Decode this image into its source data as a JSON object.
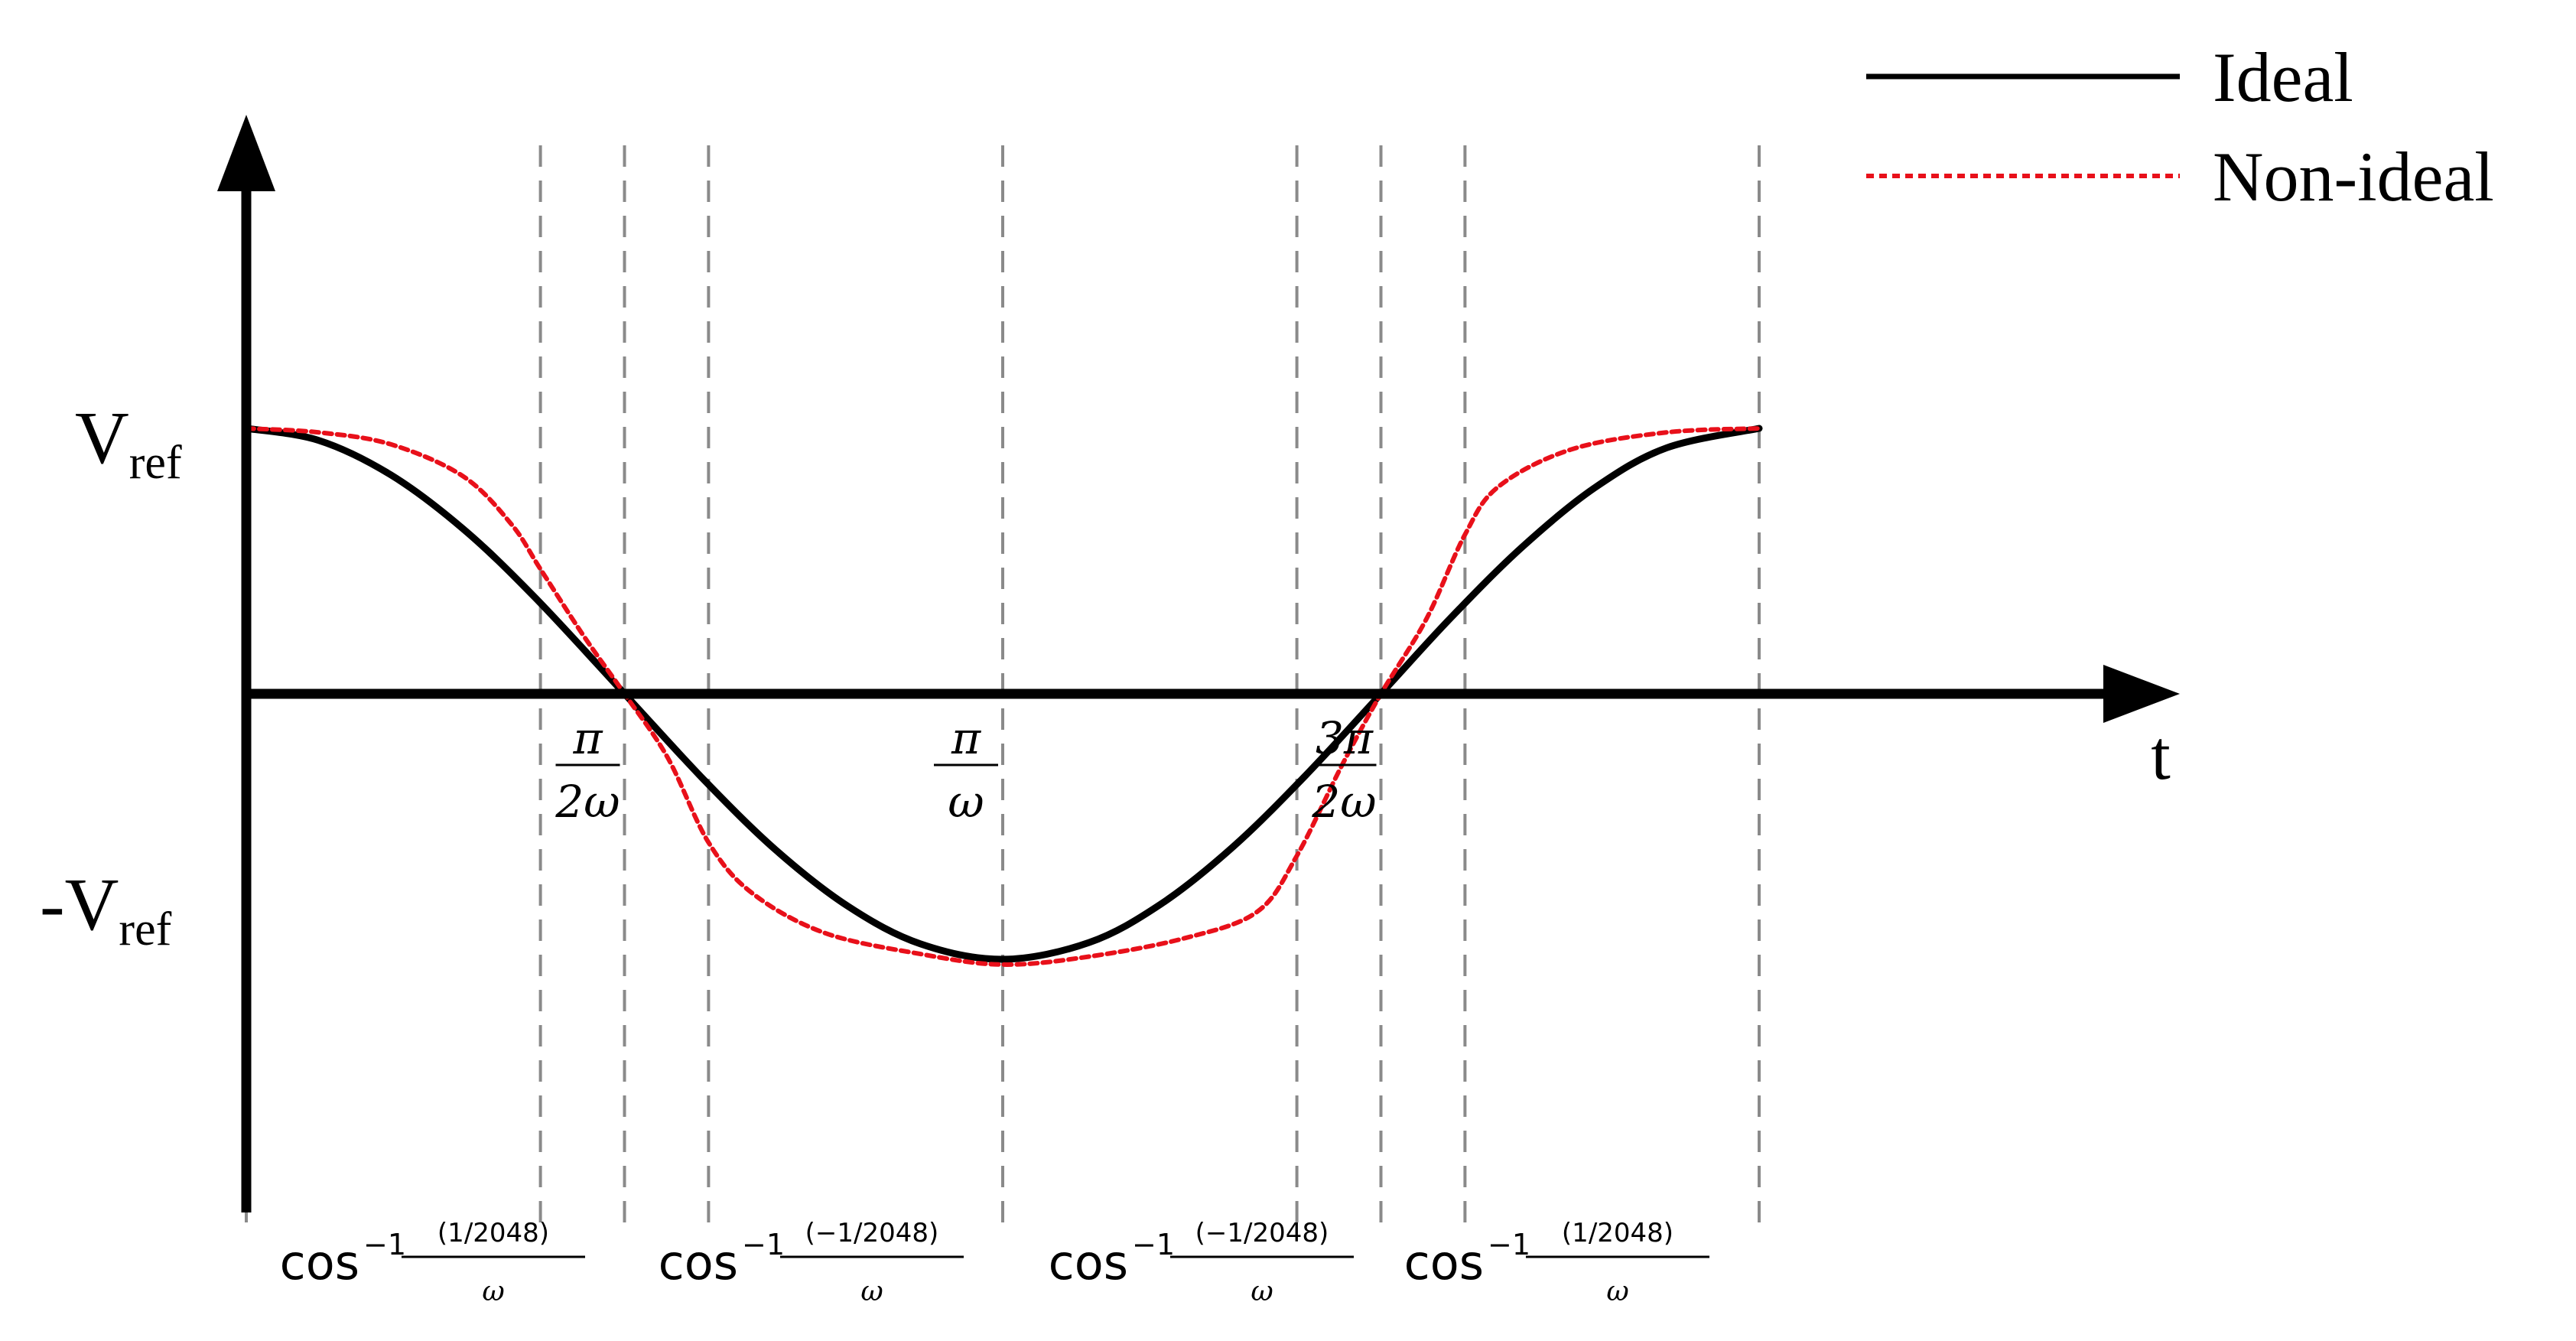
{
  "chart_data": {
    "type": "line",
    "title": "",
    "xlabel": "t",
    "ylabel": "",
    "grid": false,
    "legend_position": "top-right",
    "x_axis": {
      "name": "t",
      "range": [
        0,
        6.2832
      ],
      "ticks": [
        {
          "value": 1.5708,
          "numerator": "π",
          "denominator": "2ω"
        },
        {
          "value": 3.1416,
          "numerator": "π",
          "denominator": "ω"
        },
        {
          "value": 4.7124,
          "numerator": "3π",
          "denominator": "2ω"
        }
      ]
    },
    "y_axis": {
      "ticks": [
        {
          "value": 1,
          "base": "V",
          "prefix": "",
          "sub": "ref"
        },
        {
          "value": -1,
          "base": "V",
          "prefix": "-",
          "sub": "ref"
        }
      ]
    },
    "dashed_guides": [
      {
        "x": 0.0,
        "label": ""
      },
      {
        "x": 1.2217,
        "label_index": 0
      },
      {
        "x": 1.5708,
        "label": ""
      },
      {
        "x": 1.9199,
        "label_index": 1
      },
      {
        "x": 3.1416,
        "label": ""
      },
      {
        "x": 4.3633,
        "label_index": 2
      },
      {
        "x": 4.7124,
        "label": ""
      },
      {
        "x": 5.0615,
        "label_index": 3
      },
      {
        "x": 6.2832,
        "label": ""
      }
    ],
    "guide_labels": [
      {
        "func": "cos",
        "exp": "−1",
        "numerator": "(1/2048)",
        "denominator": "ω"
      },
      {
        "func": "cos",
        "exp": "−1",
        "numerator": "(−1/2048)",
        "denominator": "ω"
      },
      {
        "func": "cos",
        "exp": "−1",
        "numerator": "(−1/2048)",
        "denominator": "ω"
      },
      {
        "func": "cos",
        "exp": "−1",
        "numerator": "(1/2048)",
        "denominator": "ω"
      }
    ],
    "series": [
      {
        "name": "Ideal",
        "color": "#000000",
        "style": "solid",
        "x": [
          0.0,
          0.3,
          0.6,
          0.9,
          1.2,
          1.5708,
          1.9,
          2.2,
          2.5,
          2.8,
          3.1416,
          3.5,
          3.8,
          4.1,
          4.4,
          4.7124,
          5.0,
          5.3,
          5.6,
          5.9,
          6.2832
        ],
        "y": [
          1.0,
          0.955,
          0.825,
          0.622,
          0.362,
          0.0,
          -0.323,
          -0.589,
          -0.801,
          -0.942,
          -1.0,
          -0.937,
          -0.791,
          -0.575,
          -0.307,
          0.0,
          0.284,
          0.554,
          0.776,
          0.927,
          1.0
        ]
      },
      {
        "name": "Non-ideal",
        "color": "#e8101a",
        "style": "dashed",
        "x": [
          0.0,
          0.3,
          0.6,
          0.9,
          1.1,
          1.2217,
          1.4,
          1.5708,
          1.75,
          1.9199,
          2.1,
          2.4,
          2.8,
          3.1416,
          3.5,
          3.9,
          4.2,
          4.3633,
          4.55,
          4.7124,
          4.9,
          5.0615,
          5.2,
          5.5,
          5.9,
          6.2832
        ],
        "y": [
          1.0,
          0.985,
          0.94,
          0.82,
          0.64,
          0.47,
          0.22,
          0.0,
          -0.24,
          -0.56,
          -0.75,
          -0.9,
          -0.98,
          -1.02,
          -0.99,
          -0.92,
          -0.82,
          -0.61,
          -0.27,
          0.0,
          0.28,
          0.6,
          0.78,
          0.92,
          0.985,
          1.0
        ]
      }
    ]
  }
}
